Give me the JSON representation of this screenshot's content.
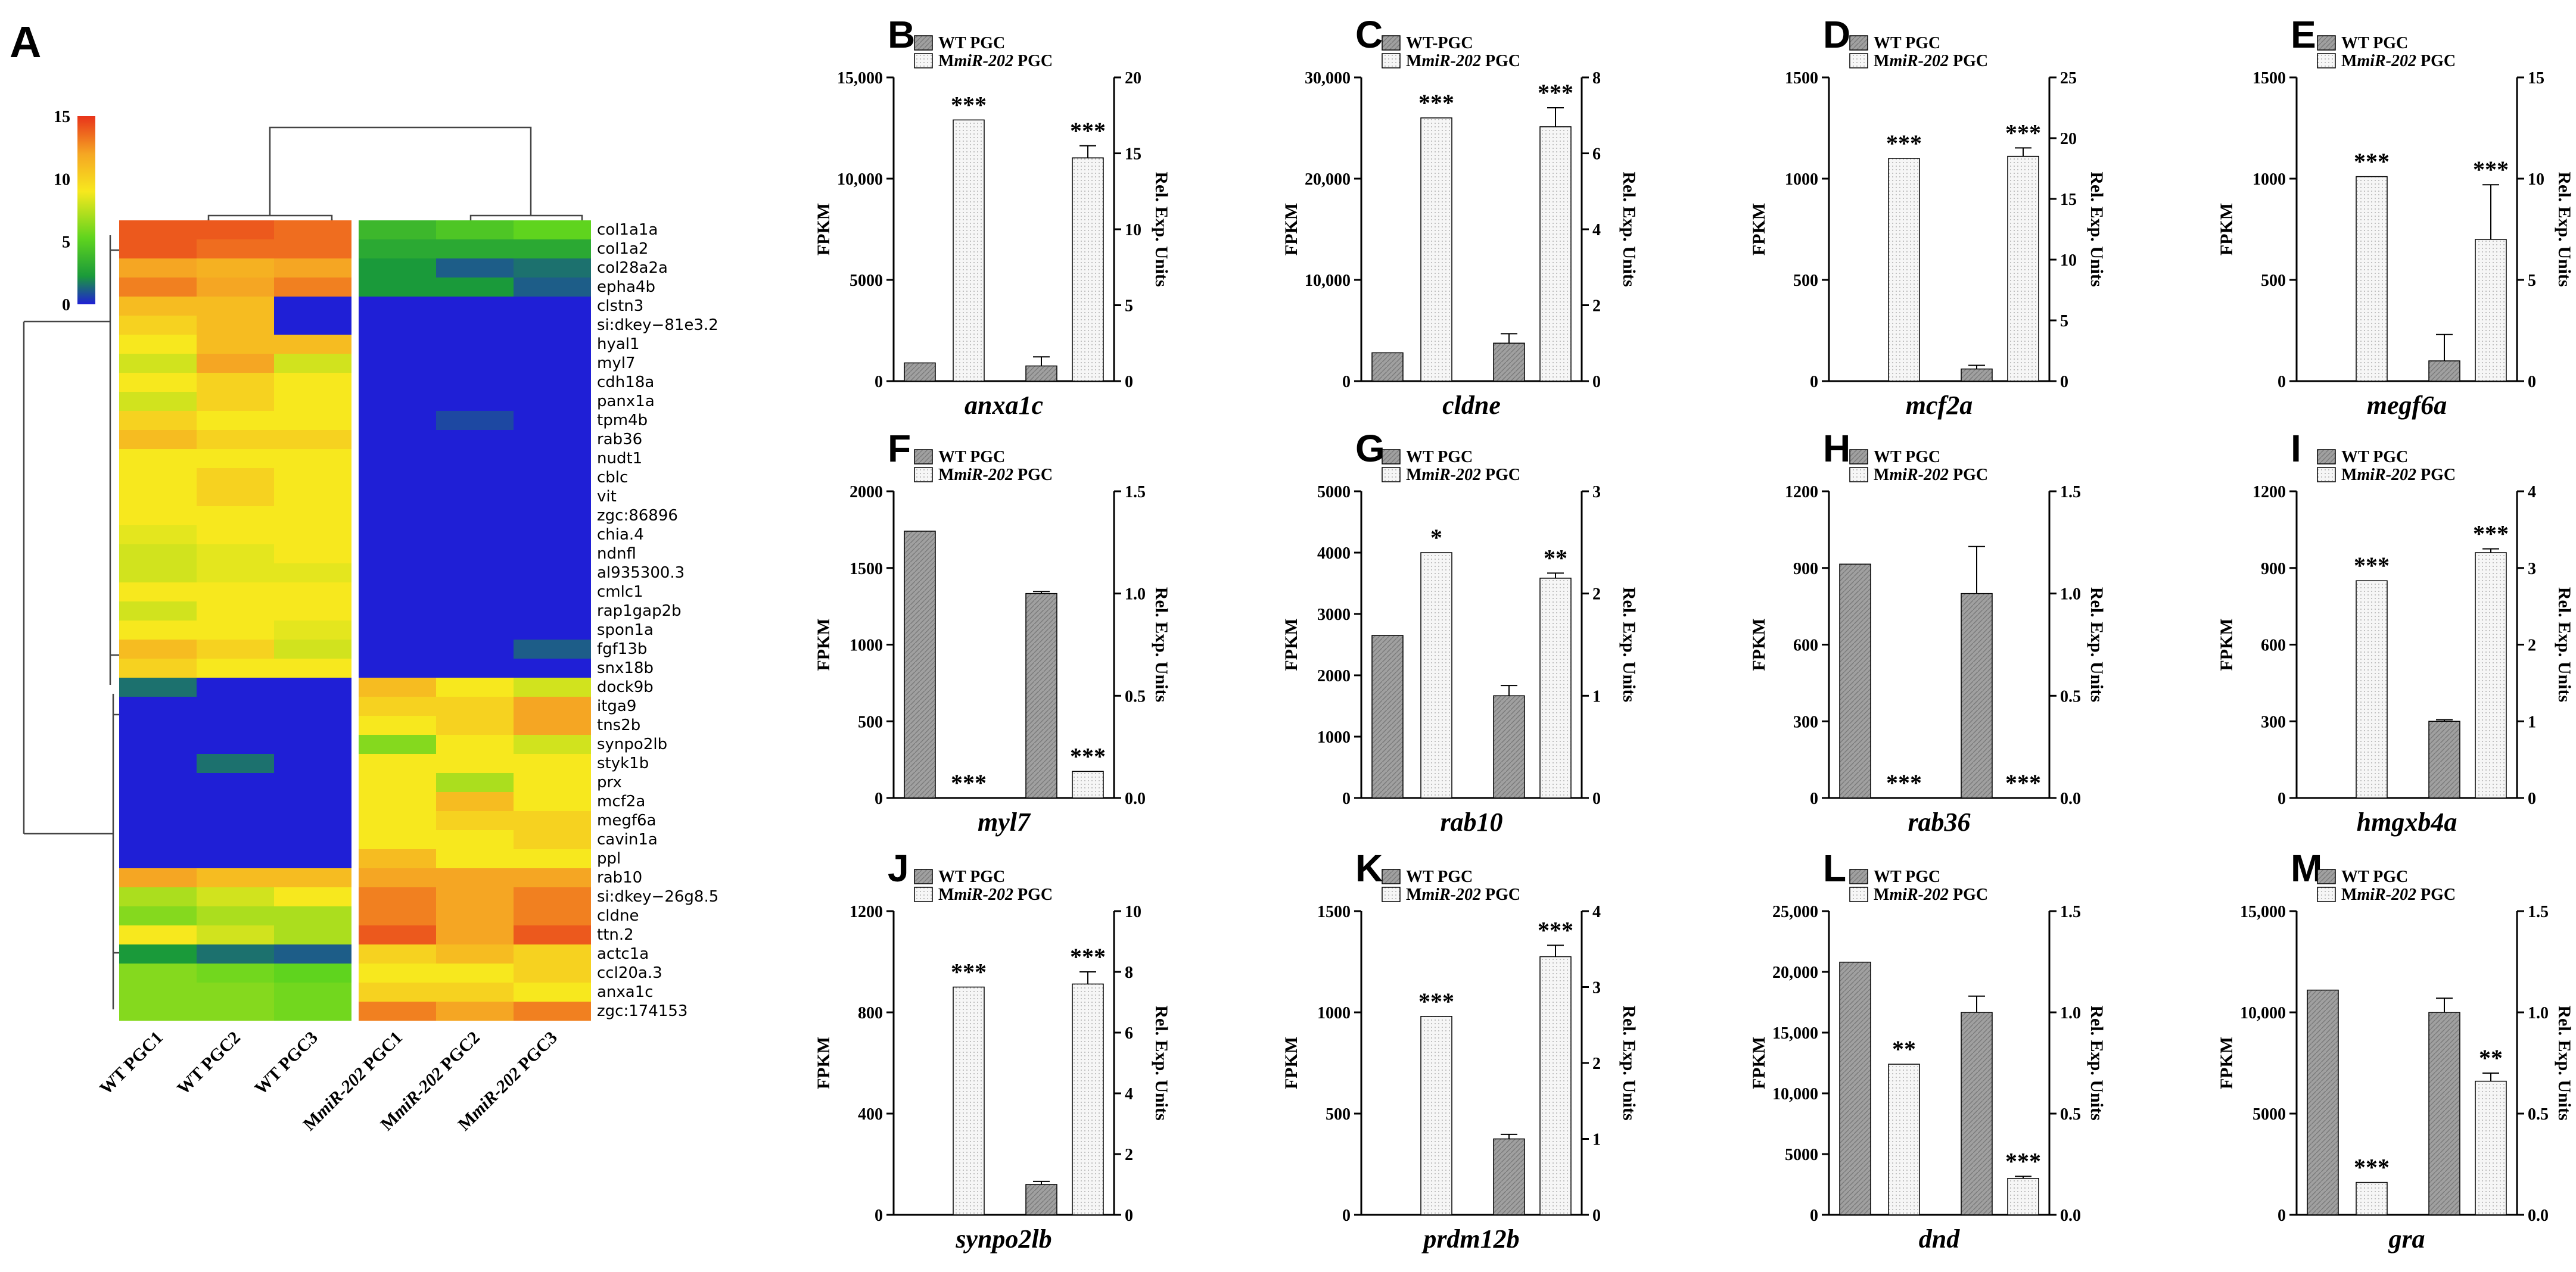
{
  "colors": {
    "wt": "#a0a0a0",
    "mut": "#f4f4f4",
    "axis": "#000000"
  },
  "chart_data": [
    {
      "type": "heatmap",
      "panel": "A",
      "color_scale": {
        "ticks": [
          "15",
          "10",
          "5",
          "0"
        ],
        "range": [
          0,
          15
        ]
      },
      "columns": [
        "WT PGC1",
        "WT PGC2",
        "WT PGC3",
        "MmiR-202 PGC1",
        "MmiR-202 PGC2",
        "MmiR-202 PGC3"
      ],
      "rows": [
        "col1a1a",
        "col1a2",
        "col28a2a",
        "epha4b",
        "clstn3",
        "si:dkey−81e3.2",
        "hyal1",
        "myl7",
        "cdh18a",
        "panx1a",
        "tpm4b",
        "rab36",
        "nudt1",
        "cblc",
        "vit",
        "zgc:86896",
        "chia.4",
        "ndnfl",
        "al935300.3",
        "cmlc1",
        "rap1gap2b",
        "spon1a",
        "fgf13b",
        "snx18b",
        "dock9b",
        "itga9",
        "tns2b",
        "synpo2lb",
        "styk1b",
        "prx",
        "mcf2a",
        "megf6a",
        "cavin1a",
        "ppl",
        "rab10",
        "si:dkey−26g8.5",
        "cldne",
        "ttn.2",
        "actc1a",
        "ccl20a.3",
        "anxa1c",
        "zgc:174153"
      ],
      "values": [
        [
          14,
          14,
          13.5,
          4,
          4.5,
          5
        ],
        [
          14,
          13.5,
          13.5,
          3.5,
          3.5,
          3.5
        ],
        [
          12,
          11.5,
          12,
          3,
          1.5,
          2
        ],
        [
          13,
          12,
          13,
          3,
          3,
          1.5
        ],
        [
          11,
          11,
          0,
          0,
          0,
          0
        ],
        [
          10,
          11,
          0,
          0,
          0,
          0
        ],
        [
          9,
          11,
          11,
          0,
          0,
          0
        ],
        [
          8,
          12,
          8,
          0,
          0,
          0
        ],
        [
          9,
          10,
          9,
          0,
          0,
          0
        ],
        [
          8,
          10,
          9,
          0,
          0,
          0
        ],
        [
          10,
          9,
          9,
          0,
          1,
          0
        ],
        [
          11,
          10,
          10,
          0,
          0,
          0
        ],
        [
          9,
          9,
          9,
          0,
          0,
          0
        ],
        [
          9,
          10,
          9,
          0,
          0,
          0
        ],
        [
          9,
          10,
          9,
          0,
          0,
          0
        ],
        [
          9,
          9,
          9,
          0,
          0,
          0
        ],
        [
          8.5,
          9,
          9,
          0,
          0,
          0
        ],
        [
          8,
          8.5,
          9,
          0,
          0,
          0
        ],
        [
          8,
          8.5,
          8.5,
          0,
          0,
          0
        ],
        [
          9,
          9,
          9,
          0,
          0,
          0
        ],
        [
          8,
          9,
          9,
          0,
          0,
          0
        ],
        [
          9,
          9,
          8.5,
          0,
          0,
          0
        ],
        [
          11,
          10,
          8,
          0,
          0,
          1.5
        ],
        [
          10,
          9,
          9,
          0,
          0,
          0
        ],
        [
          2,
          0,
          0,
          11,
          9,
          8
        ],
        [
          0,
          0,
          0,
          10,
          10,
          12
        ],
        [
          0,
          0,
          0,
          9,
          10,
          12
        ],
        [
          0,
          0,
          0,
          6,
          9,
          8
        ],
        [
          0,
          2,
          0,
          9,
          9,
          9
        ],
        [
          0,
          0,
          0,
          9,
          7,
          9
        ],
        [
          0,
          0,
          0,
          9,
          11,
          9
        ],
        [
          0,
          0,
          0,
          9,
          10,
          10
        ],
        [
          0,
          0,
          0,
          9,
          9,
          10
        ],
        [
          0,
          0,
          0,
          11,
          9,
          9
        ],
        [
          12,
          11,
          11,
          12,
          12,
          12
        ],
        [
          7,
          8,
          9,
          13,
          12,
          13
        ],
        [
          6,
          7,
          7,
          13,
          12,
          13
        ],
        [
          9,
          8,
          7,
          14,
          12,
          14
        ],
        [
          3,
          2,
          1.5,
          10,
          11,
          10
        ],
        [
          6,
          5.5,
          5,
          9,
          9,
          10
        ],
        [
          6,
          6,
          5.5,
          10,
          10,
          9
        ],
        [
          6,
          6,
          5.5,
          13,
          12,
          13
        ]
      ]
    },
    {
      "type": "bar",
      "panel": "B",
      "gene": "anxa1c",
      "legend": [
        "WT PGC",
        "MmiR-202 PGC"
      ],
      "ylabel_left": "FPKM",
      "ylabel_right": "Rel. Exp. Units",
      "left_ticks": [
        "0",
        "5000",
        "10,000",
        "15,000"
      ],
      "left_max": 15000,
      "right_ticks": [
        "0",
        "5",
        "10",
        "15",
        "20"
      ],
      "right_max": 20,
      "fpkm": [
        900,
        12900
      ],
      "fpkm_err": [
        0,
        0
      ],
      "rel": [
        1,
        14.7
      ],
      "rel_err": [
        0.6,
        0.8
      ],
      "sig_fpkm": "***",
      "sig_rel": "***"
    },
    {
      "type": "bar",
      "panel": "C",
      "gene": "cldne",
      "legend": [
        "WT-PGC",
        "MmiR-202 PGC"
      ],
      "ylabel_left": "FPKM",
      "ylabel_right": "Rel. Exp. Units",
      "left_ticks": [
        "0",
        "10,000",
        "20,000",
        "30,000"
      ],
      "left_max": 30000,
      "right_ticks": [
        "0",
        "2",
        "4",
        "6",
        "8"
      ],
      "right_max": 8,
      "fpkm": [
        2800,
        26000
      ],
      "fpkm_err": [
        0,
        0
      ],
      "rel": [
        1,
        6.7
      ],
      "rel_err": [
        0.25,
        0.5
      ],
      "sig_fpkm": "***",
      "sig_rel": "***"
    },
    {
      "type": "bar",
      "panel": "D",
      "gene": "mcf2a",
      "legend": [
        "WT PGC",
        "MmiR-202 PGC"
      ],
      "ylabel_left": "FPKM",
      "ylabel_right": "Rel. Exp. Units",
      "left_ticks": [
        "0",
        "500",
        "1000",
        "1500"
      ],
      "left_max": 1500,
      "right_ticks": [
        "0",
        "5",
        "10",
        "15",
        "20",
        "25"
      ],
      "right_max": 25,
      "fpkm": [
        0,
        1100
      ],
      "fpkm_err": [
        0,
        0
      ],
      "rel": [
        1,
        18.5
      ],
      "rel_err": [
        0.3,
        0.7
      ],
      "sig_fpkm": "***",
      "sig_rel": "***"
    },
    {
      "type": "bar",
      "panel": "E",
      "gene": "megf6a",
      "legend": [
        "WT PGC",
        "MmiR-202 PGC"
      ],
      "ylabel_left": "FPKM",
      "ylabel_right": "Rel. Exp. Units",
      "left_ticks": [
        "0",
        "500",
        "1000",
        "1500"
      ],
      "left_max": 1500,
      "right_ticks": [
        "0",
        "5",
        "10",
        "15"
      ],
      "right_max": 15,
      "fpkm": [
        0,
        1010
      ],
      "fpkm_err": [
        0,
        0
      ],
      "rel": [
        1,
        7
      ],
      "rel_err": [
        1.3,
        2.7
      ],
      "sig_fpkm": "***",
      "sig_rel": "***"
    },
    {
      "type": "bar",
      "panel": "F",
      "gene": "myl7",
      "legend": [
        "WT PGC",
        "MmiR-202 PGC"
      ],
      "ylabel_left": "FPKM",
      "ylabel_right": "Rel. Exp. Units",
      "left_ticks": [
        "0",
        "500",
        "1000",
        "1500",
        "2000"
      ],
      "left_max": 2000,
      "right_ticks": [
        "0.0",
        "0.5",
        "1.0",
        "1.5"
      ],
      "right_max": 1.5,
      "fpkm": [
        1740,
        0
      ],
      "fpkm_err": [
        0,
        0
      ],
      "rel": [
        1,
        0.13
      ],
      "rel_err": [
        0.01,
        0
      ],
      "sig_fpkm": "***",
      "sig_rel": "***"
    },
    {
      "type": "bar",
      "panel": "G",
      "gene": "rab10",
      "legend": [
        "WT PGC",
        "MmiR-202 PGC"
      ],
      "ylabel_left": "FPKM",
      "ylabel_right": "Rel. Exp. Units",
      "left_ticks": [
        "0",
        "1000",
        "2000",
        "3000",
        "4000",
        "5000"
      ],
      "left_max": 5000,
      "right_ticks": [
        "0",
        "1",
        "2",
        "3"
      ],
      "right_max": 3,
      "fpkm": [
        2650,
        4000
      ],
      "fpkm_err": [
        0,
        0
      ],
      "rel": [
        1,
        2.15
      ],
      "rel_err": [
        0.1,
        0.05
      ],
      "sig_fpkm": "*",
      "sig_rel": "**"
    },
    {
      "type": "bar",
      "panel": "H",
      "gene": "rab36",
      "legend": [
        "WT PGC",
        "MmiR-202 PGC"
      ],
      "ylabel_left": "FPKM",
      "ylabel_right": "Rel. Exp. Units",
      "left_ticks": [
        "0",
        "300",
        "600",
        "900",
        "1200"
      ],
      "left_max": 1200,
      "right_ticks": [
        "0.0",
        "0.5",
        "1.0",
        "1.5"
      ],
      "right_max": 1.5,
      "fpkm": [
        915,
        0
      ],
      "fpkm_err": [
        0,
        0
      ],
      "rel": [
        1,
        0
      ],
      "rel_err": [
        0.23,
        0
      ],
      "sig_fpkm": "***",
      "sig_rel": "***"
    },
    {
      "type": "bar",
      "panel": "I",
      "gene": "hmgxb4a",
      "legend": [
        "WT PGC",
        "MmiR-202 PGC"
      ],
      "ylabel_left": "FPKM",
      "ylabel_right": "Rel. Exp. Units",
      "left_ticks": [
        "0",
        "300",
        "600",
        "900",
        "1200"
      ],
      "left_max": 1200,
      "right_ticks": [
        "0",
        "1",
        "2",
        "3",
        "4"
      ],
      "right_max": 4,
      "fpkm": [
        0,
        850
      ],
      "fpkm_err": [
        0,
        0
      ],
      "rel": [
        1,
        3.2
      ],
      "rel_err": [
        0.02,
        0.05
      ],
      "sig_fpkm": "***",
      "sig_rel": "***"
    },
    {
      "type": "bar",
      "panel": "J",
      "gene": "synpo2lb",
      "legend": [
        "WT PGC",
        "MmiR-202 PGC"
      ],
      "ylabel_left": "FPKM",
      "ylabel_right": "Rel. Exp. Units",
      "left_ticks": [
        "0",
        "400",
        "800",
        "1200"
      ],
      "left_max": 1200,
      "right_ticks": [
        "0",
        "2",
        "4",
        "6",
        "8",
        "10"
      ],
      "right_max": 10,
      "fpkm": [
        0,
        900
      ],
      "fpkm_err": [
        0,
        0
      ],
      "rel": [
        1,
        7.6
      ],
      "rel_err": [
        0.1,
        0.4
      ],
      "sig_fpkm": "***",
      "sig_rel": "***"
    },
    {
      "type": "bar",
      "panel": "K",
      "gene": "prdm12b",
      "legend": [
        "WT PGC",
        "MmiR-202 PGC"
      ],
      "ylabel_left": "FPKM",
      "ylabel_right": "Rel. Exp. Units",
      "left_ticks": [
        "0",
        "500",
        "1000",
        "1500"
      ],
      "left_max": 1500,
      "right_ticks": [
        "0",
        "1",
        "2",
        "3",
        "4"
      ],
      "right_max": 4,
      "fpkm": [
        0,
        980
      ],
      "fpkm_err": [
        0,
        0
      ],
      "rel": [
        1,
        3.4
      ],
      "rel_err": [
        0.06,
        0.15
      ],
      "sig_fpkm": "***",
      "sig_rel": "***"
    },
    {
      "type": "bar",
      "panel": "L",
      "gene": "dnd",
      "legend": [
        "WT PGC",
        "MmiR-202 PGC"
      ],
      "ylabel_left": "FPKM",
      "ylabel_right": "Rel. Exp. Units",
      "left_ticks": [
        "0",
        "5000",
        "10,000",
        "15,000",
        "20,000",
        "25,000"
      ],
      "left_max": 25000,
      "right_ticks": [
        "0.0",
        "0.5",
        "1.0",
        "1.5"
      ],
      "right_max": 1.5,
      "fpkm": [
        20800,
        12400
      ],
      "fpkm_err": [
        0,
        0
      ],
      "rel": [
        1,
        0.18
      ],
      "rel_err": [
        0.08,
        0.01
      ],
      "sig_fpkm": "**",
      "sig_rel": "***"
    },
    {
      "type": "bar",
      "panel": "M",
      "gene": "gra",
      "legend": [
        "WT PGC",
        "MmiR-202 PGC"
      ],
      "ylabel_left": "FPKM",
      "ylabel_right": "Rel. Exp. Units",
      "left_ticks": [
        "0",
        "5000",
        "10,000",
        "15,000"
      ],
      "left_max": 15000,
      "right_ticks": [
        "0.0",
        "0.5",
        "1.0",
        "1.5"
      ],
      "right_max": 1.5,
      "fpkm": [
        11100,
        1600
      ],
      "fpkm_err": [
        0,
        0
      ],
      "rel": [
        1,
        0.66
      ],
      "rel_err": [
        0.07,
        0.04
      ],
      "sig_fpkm": "***",
      "sig_rel": "**"
    }
  ]
}
